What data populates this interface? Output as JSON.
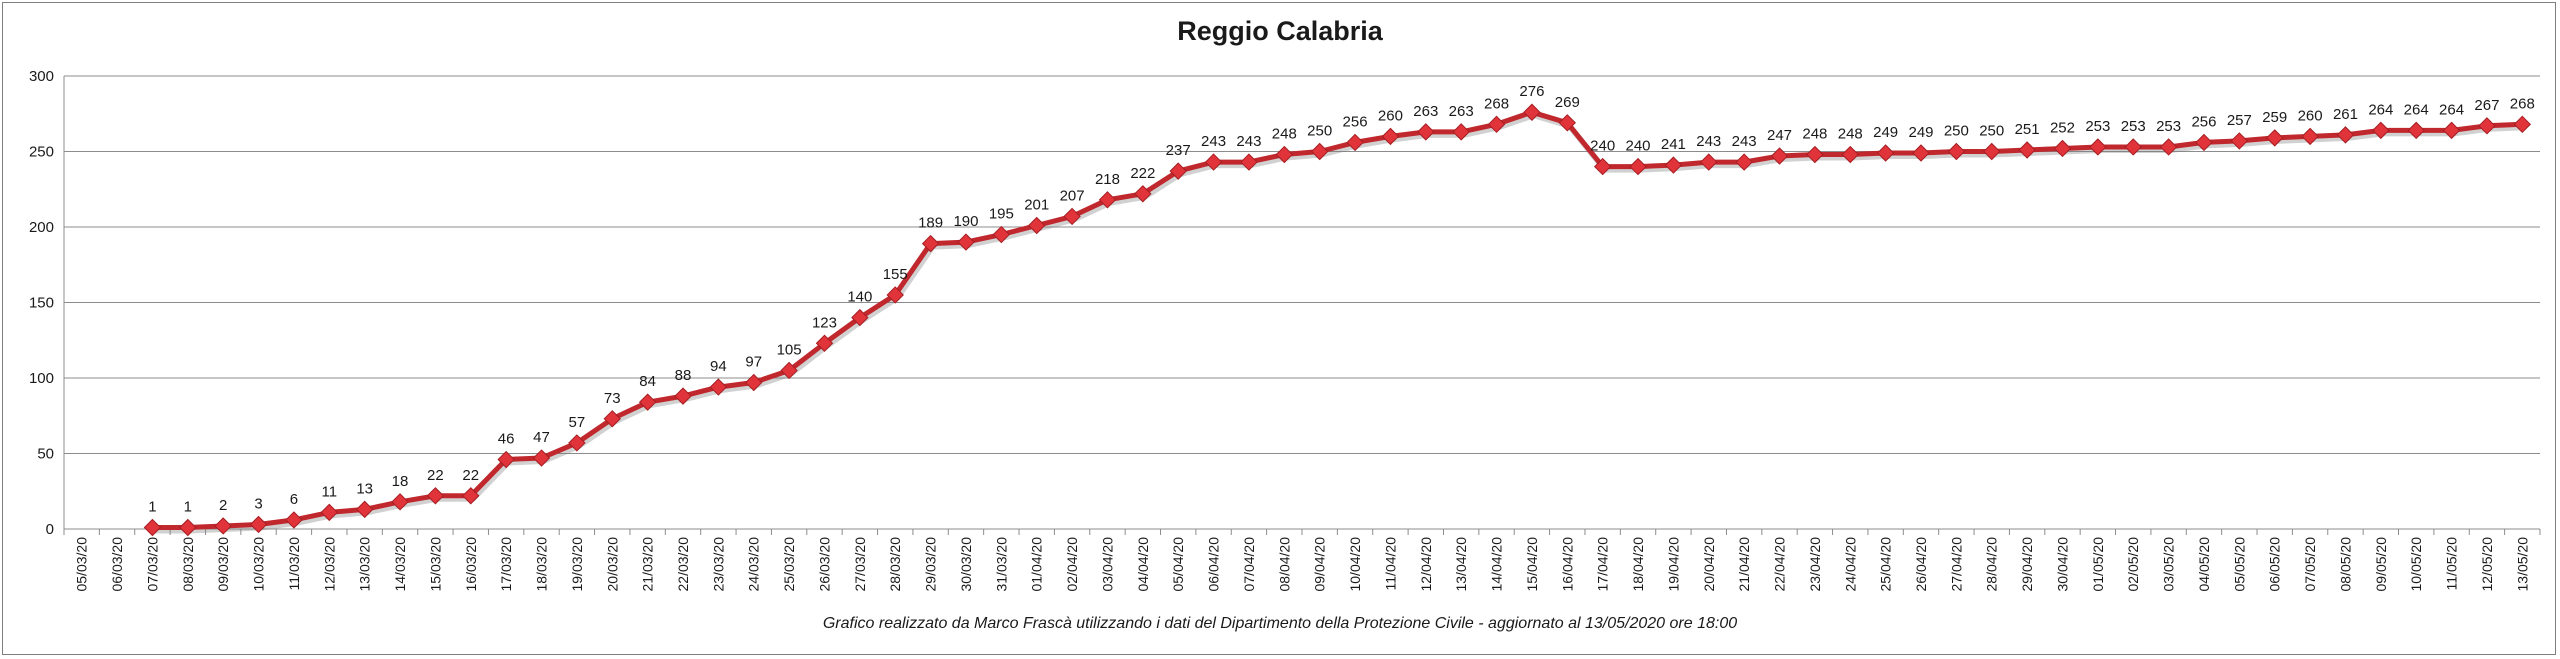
{
  "chart_data": {
    "type": "line",
    "title": "Reggio Calabria",
    "caption": "Grafico  realizzato da Marco Frascà  utilizzando i dati del Dipartimento  della Protezione Civile  - aggiornato al 13/05/2020 ore 18:00",
    "xlabel": "",
    "ylabel": "",
    "ylim": [
      0,
      300
    ],
    "yticks": [
      0,
      50,
      100,
      150,
      200,
      250,
      300
    ],
    "grid": true,
    "legend": "none",
    "color": "#c0282d",
    "categories": [
      "05/03/20",
      "06/03/20",
      "07/03/20",
      "08/03/20",
      "09/03/20",
      "10/03/20",
      "11/03/20",
      "12/03/20",
      "13/03/20",
      "14/03/20",
      "15/03/20",
      "16/03/20",
      "17/03/20",
      "18/03/20",
      "19/03/20",
      "20/03/20",
      "21/03/20",
      "22/03/20",
      "23/03/20",
      "24/03/20",
      "25/03/20",
      "26/03/20",
      "27/03/20",
      "28/03/20",
      "29/03/20",
      "30/03/20",
      "31/03/20",
      "01/04/20",
      "02/04/20",
      "03/04/20",
      "04/04/20",
      "05/04/20",
      "06/04/20",
      "07/04/20",
      "08/04/20",
      "09/04/20",
      "10/04/20",
      "11/04/20",
      "12/04/20",
      "13/04/20",
      "14/04/20",
      "15/04/20",
      "16/04/20",
      "17/04/20",
      "18/04/20",
      "19/04/20",
      "20/04/20",
      "21/04/20",
      "22/04/20",
      "23/04/20",
      "24/04/20",
      "25/04/20",
      "26/04/20",
      "27/04/20",
      "28/04/20",
      "29/04/20",
      "30/04/20",
      "01/05/20",
      "02/05/20",
      "03/05/20",
      "04/05/20",
      "05/05/20",
      "06/05/20",
      "07/05/20",
      "08/05/20",
      "09/05/20",
      "10/05/20",
      "11/05/20",
      "12/05/20",
      "13/05/20"
    ],
    "values": [
      null,
      null,
      1,
      1,
      2,
      3,
      6,
      11,
      13,
      18,
      22,
      22,
      46,
      47,
      57,
      73,
      84,
      88,
      94,
      97,
      105,
      123,
      140,
      155,
      189,
      190,
      195,
      201,
      207,
      218,
      222,
      237,
      243,
      243,
      248,
      250,
      256,
      260,
      263,
      263,
      268,
      276,
      269,
      240,
      240,
      241,
      243,
      243,
      247,
      248,
      248,
      249,
      249,
      250,
      250,
      251,
      252,
      253,
      253,
      253,
      256,
      257,
      259,
      260,
      261,
      264,
      264,
      264,
      267,
      268
    ]
  }
}
